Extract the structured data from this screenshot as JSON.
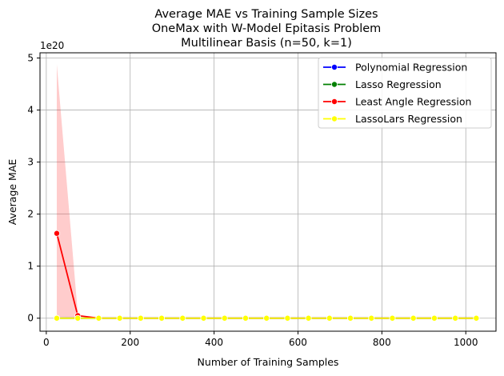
{
  "chart_data": {
    "type": "line",
    "title": [
      "Average MAE vs Training Sample Sizes",
      "OneMax with W-Model Epitasis Problem",
      "Multilinear Basis (n=50, k=1)"
    ],
    "xlabel": "Number of Training Samples",
    "ylabel": "Average MAE",
    "y_scale_label": "1e20",
    "xlim": [
      -15,
      1072
    ],
    "ylim": [
      -0.25,
      5.1
    ],
    "xticks": [
      0,
      200,
      400,
      600,
      800,
      1000
    ],
    "xtick_labels": [
      "0",
      "200",
      "400",
      "600",
      "800",
      "1000"
    ],
    "yticks": [
      0,
      1,
      2,
      3,
      4,
      5
    ],
    "ytick_labels": [
      "0",
      "1",
      "2",
      "3",
      "4",
      "5"
    ],
    "grid": true,
    "legend_position": "top-right",
    "x": [
      25,
      75,
      125,
      175,
      225,
      275,
      325,
      375,
      425,
      475,
      525,
      575,
      625,
      675,
      725,
      775,
      825,
      875,
      925,
      975,
      1025
    ],
    "series": [
      {
        "name": "Polynomial Regression",
        "color": "#0000ff",
        "values": [
          0,
          0,
          0,
          0,
          0,
          0,
          0,
          0,
          0,
          0,
          0,
          0,
          0,
          0,
          0,
          0,
          0,
          0,
          0,
          0,
          0
        ]
      },
      {
        "name": "Lasso Regression",
        "color": "#008000",
        "values": [
          0,
          0,
          0,
          0,
          0,
          0,
          0,
          0,
          0,
          0,
          0,
          0,
          0,
          0,
          0,
          0,
          0,
          0,
          0,
          0,
          0
        ]
      },
      {
        "name": "Least Angle Regression",
        "color": "#ff0000",
        "values": [
          1.63,
          0.05,
          0,
          0,
          0,
          0,
          0,
          0,
          0,
          0,
          0,
          0,
          0,
          0,
          0,
          0,
          0,
          0,
          0,
          0,
          0
        ],
        "band": {
          "x": [
            25,
            75
          ],
          "lower": [
            0.02,
            0.0
          ],
          "upper": [
            4.88,
            0.1
          ]
        }
      },
      {
        "name": "LassoLars Regression",
        "color": "#ffff00",
        "values": [
          0,
          0,
          0,
          0,
          0,
          0,
          0,
          0,
          0,
          0,
          0,
          0,
          0,
          0,
          0,
          0,
          0,
          0,
          0,
          0,
          0
        ]
      }
    ]
  }
}
